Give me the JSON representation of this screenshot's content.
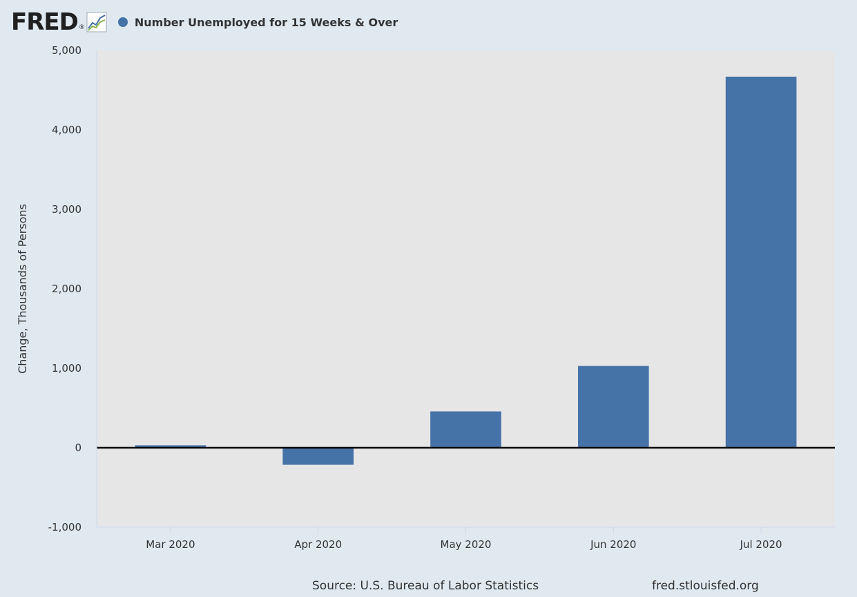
{
  "header": {
    "logo_text": "FRED",
    "logo_reg": "®",
    "logo_icon": "line-chart-icon",
    "legend_label": "Number Unemployed for 15 Weeks & Over",
    "legend_color": "#4572a7"
  },
  "footer": {
    "source": "Source: U.S. Bureau of Labor Statistics",
    "site": "fred.stlouisfed.org"
  },
  "colors": {
    "bar": "#4572a7",
    "plot_bg": "#e6e6e6",
    "page_bg": "#e1e9f0",
    "zero_line": "#000000"
  },
  "chart_data": {
    "type": "bar",
    "title": "",
    "xlabel": "",
    "ylabel": "Change, Thousands of Persons",
    "categories": [
      "Mar 2020",
      "Apr 2020",
      "May 2020",
      "Jun 2020",
      "Jul 2020"
    ],
    "series": [
      {
        "name": "Number Unemployed for 15 Weeks & Over",
        "values": [
          31,
          -214,
          457,
          1029,
          4670
        ]
      }
    ],
    "ylim": [
      -1000,
      5000
    ],
    "yticks": [
      -1000,
      0,
      1000,
      2000,
      3000,
      4000,
      5000
    ],
    "ytick_labels": [
      "-1,000",
      "0",
      "1,000",
      "2,000",
      "3,000",
      "4,000",
      "5,000"
    ],
    "grid": false,
    "legend": "top-left"
  }
}
